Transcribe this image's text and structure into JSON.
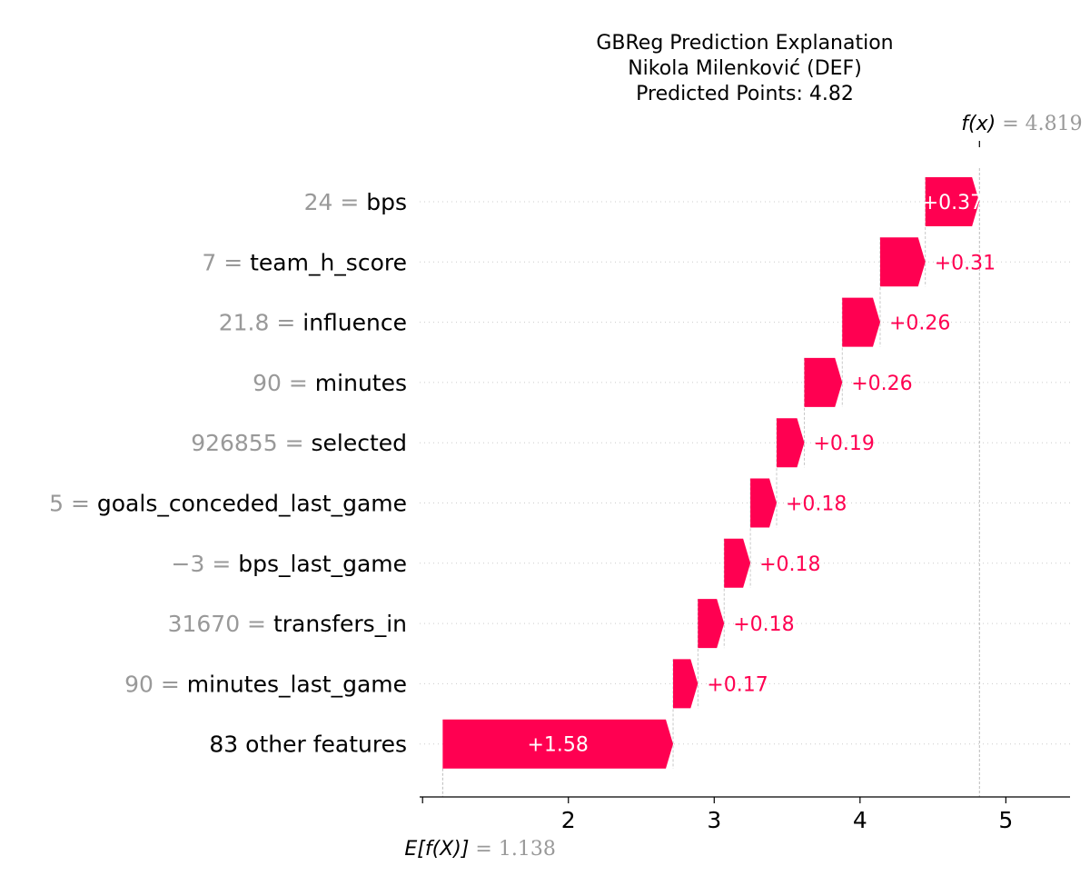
{
  "chart_data": {
    "type": "waterfall",
    "title": [
      "GBReg Prediction Explanation",
      "Nikola Milenković (DEF)",
      "Predicted Points: 4.82"
    ],
    "base_value": 1.138,
    "base_label": {
      "text": "E[f(X)]",
      "value": "1.138"
    },
    "output_value": 4.819,
    "output_label": {
      "text": "f(x)",
      "value": "4.819"
    },
    "xlim": [
      0.98,
      5.44
    ],
    "xticks": [
      1,
      2,
      3,
      4,
      5
    ],
    "tick_labels": [
      "",
      "2",
      "3",
      "4",
      "5"
    ],
    "positive_color": "#ff0051",
    "features": [
      {
        "value": "24",
        "name": "bps",
        "contribution": 0.37,
        "label": "+0.37",
        "label_inside": true
      },
      {
        "value": "7",
        "name": "team_h_score",
        "contribution": 0.31,
        "label": "+0.31",
        "label_inside": false
      },
      {
        "value": "21.8",
        "name": "influence",
        "contribution": 0.26,
        "label": "+0.26",
        "label_inside": false
      },
      {
        "value": "90",
        "name": "minutes",
        "contribution": 0.26,
        "label": "+0.26",
        "label_inside": false
      },
      {
        "value": "926855",
        "name": "selected",
        "contribution": 0.19,
        "label": "+0.19",
        "label_inside": false
      },
      {
        "value": "5",
        "name": "goals_conceded_last_game",
        "contribution": 0.18,
        "label": "+0.18",
        "label_inside": false
      },
      {
        "value": "−3",
        "name": "bps_last_game",
        "contribution": 0.18,
        "label": "+0.18",
        "label_inside": false
      },
      {
        "value": "31670",
        "name": "transfers_in",
        "contribution": 0.18,
        "label": "+0.18",
        "label_inside": false
      },
      {
        "value": "90",
        "name": "minutes_last_game",
        "contribution": 0.17,
        "label": "+0.17",
        "label_inside": false
      },
      {
        "value": "",
        "name": "83 other features",
        "contribution": 1.58,
        "label": "+1.58",
        "label_inside": true
      }
    ]
  }
}
